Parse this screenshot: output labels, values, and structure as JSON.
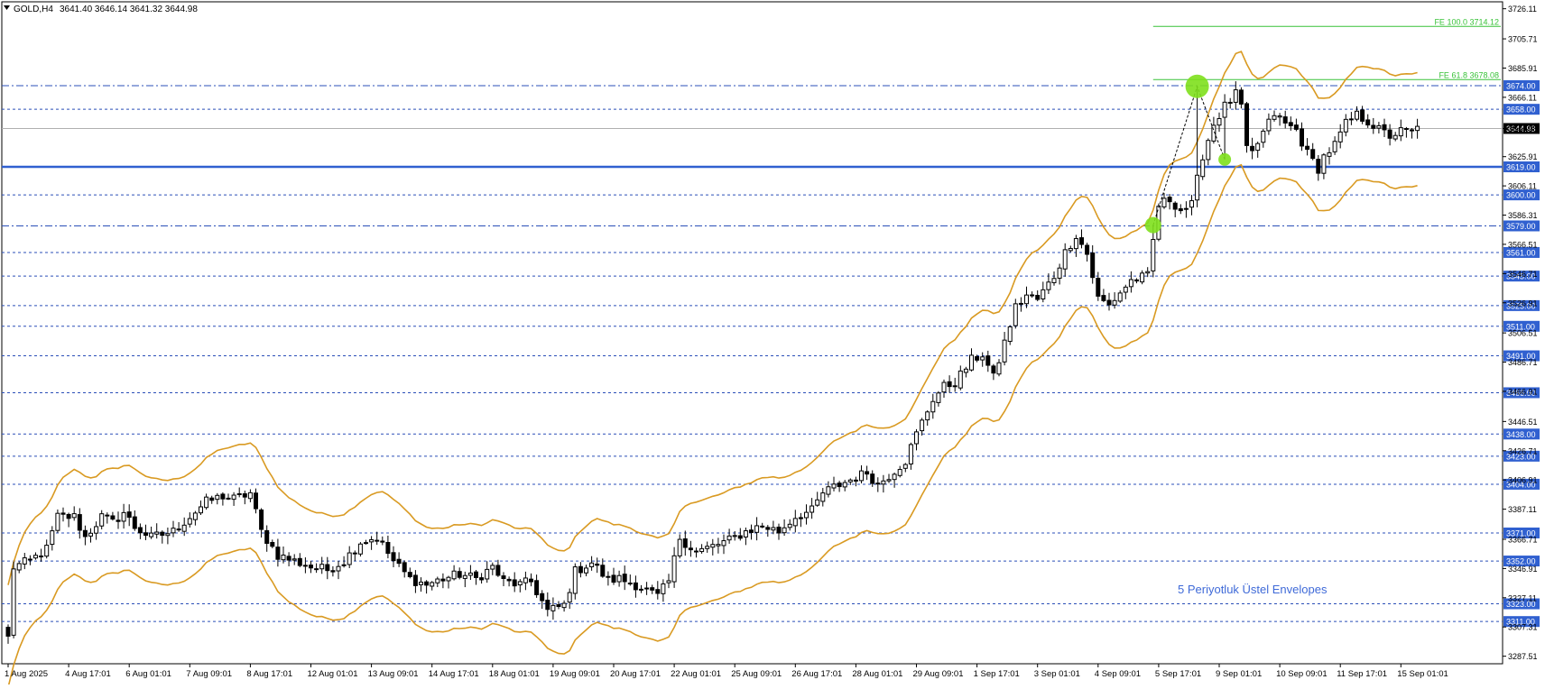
{
  "header": {
    "symbol": "GOLD,H4",
    "ohlc": "3641.40 3646.14 3641.32 3644.98"
  },
  "annotation": {
    "text": "5 Periyotluk Üstel Envelopes"
  },
  "chart_data": {
    "type": "candlestick",
    "title": "GOLD,H4",
    "ylim": [
      3282.4,
      3730.8
    ],
    "y_ticks": [
      "3726.11",
      "3705.71",
      "3685.91",
      "3666.11",
      "3644.98",
      "3625.91",
      "3606.11",
      "3586.31",
      "3566.51",
      "3546.71",
      "3526.91",
      "3506.51",
      "3486.71",
      "3466.91",
      "3446.51",
      "3426.71",
      "3406.91",
      "3387.11",
      "3366.71",
      "3346.91",
      "3327.11",
      "3307.31",
      "3287.51"
    ],
    "x_ticks": [
      {
        "label": "1 Aug 2025",
        "i": 0
      },
      {
        "label": "4 Aug 17:01",
        "i": 11
      },
      {
        "label": "6 Aug 01:01",
        "i": 22
      },
      {
        "label": "7 Aug 09:01",
        "i": 33
      },
      {
        "label": "8 Aug 17:01",
        "i": 44
      },
      {
        "label": "12 Aug 01:01",
        "i": 55
      },
      {
        "label": "13 Aug 09:01",
        "i": 66
      },
      {
        "label": "14 Aug 17:01",
        "i": 77
      },
      {
        "label": "18 Aug 01:01",
        "i": 88
      },
      {
        "label": "19 Aug 09:01",
        "i": 99
      },
      {
        "label": "20 Aug 17:01",
        "i": 110
      },
      {
        "label": "22 Aug 01:01",
        "i": 121
      },
      {
        "label": "25 Aug 09:01",
        "i": 132
      },
      {
        "label": "26 Aug 17:01",
        "i": 143
      },
      {
        "label": "28 Aug 01:01",
        "i": 154
      },
      {
        "label": "29 Aug 09:01",
        "i": 165
      },
      {
        "label": "1 Sep 17:01",
        "i": 176
      },
      {
        "label": "3 Sep 01:01",
        "i": 187
      },
      {
        "label": "4 Sep 09:01",
        "i": 198
      },
      {
        "label": "5 Sep 17:01",
        "i": 209
      },
      {
        "label": "9 Sep 01:01",
        "i": 220
      },
      {
        "label": "10 Sep 09:01",
        "i": 231
      },
      {
        "label": "11 Sep 17:01",
        "i": 242
      },
      {
        "label": "15 Sep 01:01",
        "i": 253
      }
    ],
    "horizontal_levels": [
      {
        "value": 3674.0,
        "label": "3674.00",
        "style": "dashdot"
      },
      {
        "value": 3658.0,
        "label": "3658.00",
        "style": "dash"
      },
      {
        "value": 3619.0,
        "label": "3619.00",
        "style": "solid-thick"
      },
      {
        "value": 3600.0,
        "label": "3600.00",
        "style": "dash"
      },
      {
        "value": 3579.0,
        "label": "3579.00",
        "style": "dashdot"
      },
      {
        "value": 3561.0,
        "label": "3561.00",
        "style": "dash"
      },
      {
        "value": 3545.0,
        "label": "3545.00",
        "style": "dash"
      },
      {
        "value": 3525.0,
        "label": "3525.00",
        "style": "dash"
      },
      {
        "value": 3511.0,
        "label": "3511.00",
        "style": "dash"
      },
      {
        "value": 3491.0,
        "label": "3491.00",
        "style": "dash"
      },
      {
        "value": 3466.0,
        "label": "3466.00",
        "style": "dash"
      },
      {
        "value": 3438.0,
        "label": "3438.00",
        "style": "dash"
      },
      {
        "value": 3423.0,
        "label": "3423.00",
        "style": "dash"
      },
      {
        "value": 3404.0,
        "label": "3404.00",
        "style": "dash"
      },
      {
        "value": 3371.0,
        "label": "3371.00",
        "style": "dash"
      },
      {
        "value": 3352.0,
        "label": "3352.00",
        "style": "dash"
      },
      {
        "value": 3323.0,
        "label": "3323.00",
        "style": "dash"
      },
      {
        "value": 3311.0,
        "label": "3311.00",
        "style": "dash"
      }
    ],
    "current_price": {
      "value": 3644.98,
      "label": "3644.98"
    },
    "fibo_levels": [
      {
        "value": 3714.12,
        "label": "FE 100.0 3714.12"
      },
      {
        "value": 3678.08,
        "label": "FE 61.8 3678.08"
      }
    ],
    "fibo_range": {
      "start_i": 208,
      "end_i": 256
    },
    "swing_points": [
      {
        "i": 208,
        "value": 3579.5
      },
      {
        "i": 216,
        "value": 3673.5
      },
      {
        "i": 221,
        "value": 3624.0
      }
    ],
    "keyframes": [
      [
        0,
        3300
      ],
      [
        1,
        3348
      ],
      [
        4,
        3352
      ],
      [
        7,
        3360
      ],
      [
        9,
        3382
      ],
      [
        12,
        3382
      ],
      [
        14,
        3368
      ],
      [
        17,
        3382
      ],
      [
        19,
        3378
      ],
      [
        21,
        3385
      ],
      [
        23,
        3375
      ],
      [
        26,
        3368
      ],
      [
        28,
        3370
      ],
      [
        30,
        3372
      ],
      [
        33,
        3382
      ],
      [
        36,
        3392
      ],
      [
        39,
        3396
      ],
      [
        41,
        3394
      ],
      [
        44,
        3398
      ],
      [
        46,
        3372
      ],
      [
        49,
        3356
      ],
      [
        52,
        3352
      ],
      [
        55,
        3348
      ],
      [
        58,
        3346
      ],
      [
        61,
        3352
      ],
      [
        64,
        3365
      ],
      [
        67,
        3368
      ],
      [
        70,
        3352
      ],
      [
        73,
        3340
      ],
      [
        76,
        3336
      ],
      [
        79,
        3340
      ],
      [
        82,
        3343
      ],
      [
        85,
        3340
      ],
      [
        88,
        3348
      ],
      [
        90,
        3338
      ],
      [
        93,
        3336
      ],
      [
        95,
        3338
      ],
      [
        98,
        3318
      ],
      [
        101,
        3322
      ],
      [
        103,
        3345
      ],
      [
        106,
        3351
      ],
      [
        109,
        3339
      ],
      [
        111,
        3340
      ],
      [
        114,
        3336
      ],
      [
        116,
        3332
      ],
      [
        118,
        3328
      ],
      [
        120,
        3338
      ],
      [
        122,
        3368
      ],
      [
        125,
        3358
      ],
      [
        128,
        3362
      ],
      [
        131,
        3366
      ],
      [
        134,
        3372
      ],
      [
        137,
        3376
      ],
      [
        140,
        3372
      ],
      [
        143,
        3382
      ],
      [
        146,
        3386
      ],
      [
        148,
        3398
      ],
      [
        150,
        3402
      ],
      [
        153,
        3407
      ],
      [
        156,
        3412
      ],
      [
        158,
        3404
      ],
      [
        160,
        3410
      ],
      [
        163,
        3420
      ],
      [
        165,
        3438
      ],
      [
        168,
        3462
      ],
      [
        170,
        3470
      ],
      [
        172,
        3473
      ],
      [
        175,
        3488
      ],
      [
        177,
        3492
      ],
      [
        179,
        3476
      ],
      [
        181,
        3500
      ],
      [
        183,
        3524
      ],
      [
        185,
        3532
      ],
      [
        187,
        3529
      ],
      [
        190,
        3545
      ],
      [
        192,
        3561
      ],
      [
        194,
        3573
      ],
      [
        196,
        3560
      ],
      [
        198,
        3530
      ],
      [
        200,
        3525
      ],
      [
        202,
        3534
      ],
      [
        204,
        3542
      ],
      [
        207,
        3545
      ],
      [
        209,
        3593
      ],
      [
        211,
        3597
      ],
      [
        213,
        3590
      ],
      [
        215,
        3593
      ],
      [
        217,
        3627
      ],
      [
        219,
        3648
      ],
      [
        221,
        3660
      ],
      [
        223,
        3668
      ],
      [
        224,
        3660
      ],
      [
        225,
        3630
      ],
      [
        226,
        3628
      ],
      [
        228,
        3642
      ],
      [
        230,
        3655
      ],
      [
        232,
        3648
      ],
      [
        234,
        3644
      ],
      [
        236,
        3628
      ],
      [
        238,
        3618
      ],
      [
        239,
        3626
      ],
      [
        241,
        3634
      ],
      [
        243,
        3648
      ],
      [
        245,
        3654
      ],
      [
        247,
        3650
      ],
      [
        249,
        3644
      ],
      [
        251,
        3640
      ],
      [
        253,
        3643
      ],
      [
        255,
        3642
      ],
      [
        256,
        3645
      ]
    ],
    "series": [
      {
        "name": "Envelope upper",
        "values_from": "ema_plus"
      },
      {
        "name": "Envelope lower",
        "values_from": "ema_minus"
      }
    ]
  }
}
